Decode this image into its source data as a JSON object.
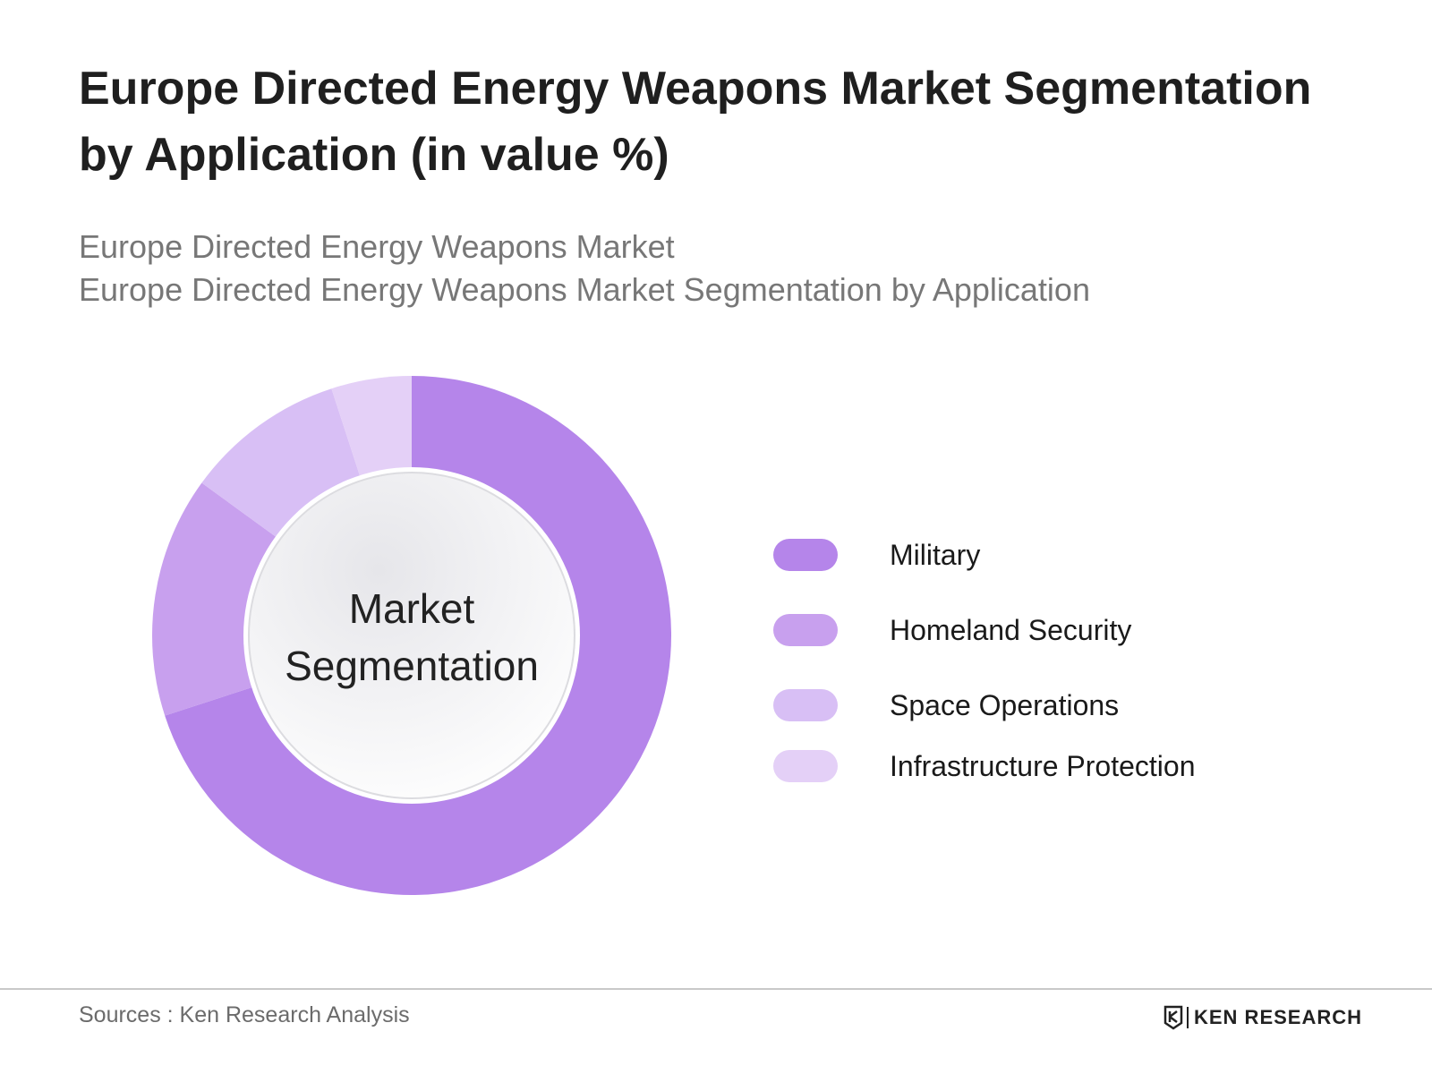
{
  "header": {
    "title": "Europe Directed Energy Weapons Market Segmentation by Application (in value %)",
    "subtitle_line1": "Europe Directed Energy Weapons Market",
    "subtitle_line2": "Europe Directed Energy Weapons Market Segmentation by Application"
  },
  "chart_data": {
    "type": "pie",
    "variant": "donut",
    "center_label_line1": "Market",
    "center_label_line2": "Segmentation",
    "categories": [
      "Military",
      "Homeland Security",
      "Space Operations",
      "Infrastructure Protection"
    ],
    "values": [
      70,
      15,
      10,
      5
    ],
    "colors": [
      "#b585ea",
      "#c8a0ee",
      "#d8bff5",
      "#e4d0f7"
    ],
    "legend_position": "right"
  },
  "footer": {
    "source": "Sources : Ken Research Analysis",
    "logo_text": "KEN RESEARCH"
  }
}
